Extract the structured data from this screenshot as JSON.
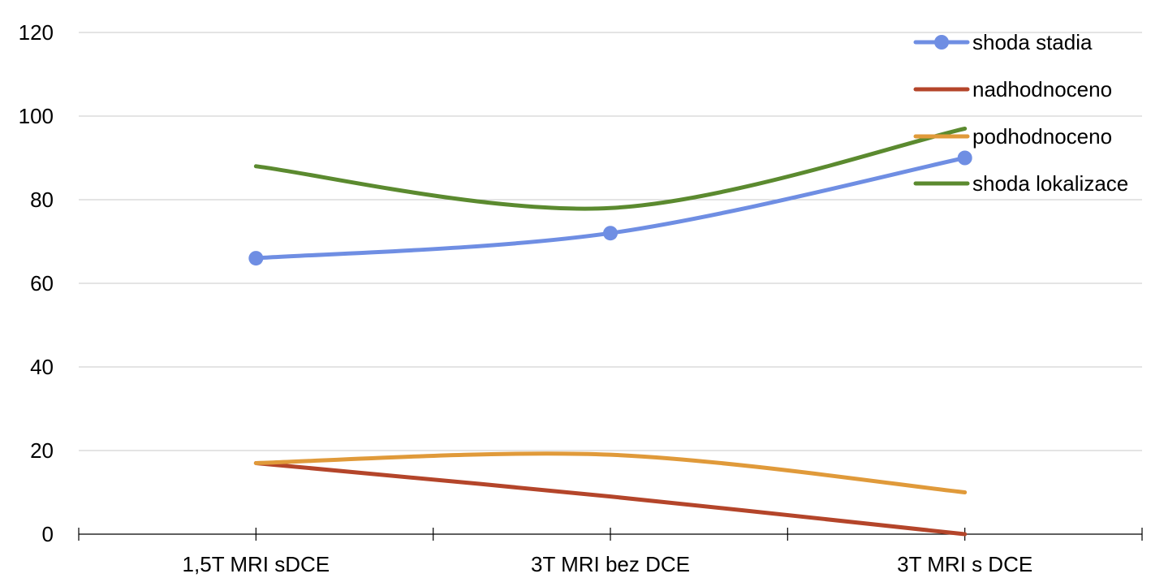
{
  "chart_data": {
    "type": "line",
    "title": "",
    "xlabel": "",
    "ylabel": "",
    "categories": [
      "1,5T MRI sDCE",
      "3T MRI bez DCE",
      "3T MRI s DCE"
    ],
    "ylim": [
      0,
      120
    ],
    "yticks": [
      "0",
      "20",
      "40",
      "60",
      "80",
      "100",
      "120"
    ],
    "grid": true,
    "smooth": true,
    "legend_position": "top-right",
    "series": [
      {
        "name": "shoda stadia",
        "values": [
          66,
          72,
          90
        ],
        "color": "#6f8ee3",
        "markers": true
      },
      {
        "name": "nadhodnoceno",
        "values": [
          17,
          9,
          0
        ],
        "color": "#b4452a",
        "markers": false
      },
      {
        "name": "podhodnoceno",
        "values": [
          17,
          19,
          10
        ],
        "color": "#e09a3a",
        "markers": false
      },
      {
        "name": "shoda lokalizace",
        "values": [
          88,
          78,
          97
        ],
        "color": "#5b8a2f",
        "markers": false
      }
    ]
  }
}
